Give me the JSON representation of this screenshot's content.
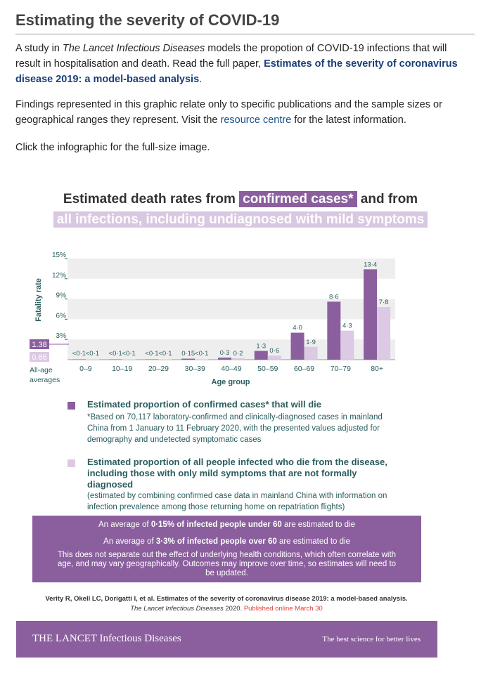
{
  "page": {
    "heading": "Estimating the severity of COVID-19",
    "intro": {
      "pre": "A study in ",
      "journal": "The Lancet Infectious Diseases",
      "mid": " models the propotion of COVID-19 infections that will result in hospitalisation and death. Read the full paper, ",
      "paper_link": "Estimates of the severity of coronavirus disease 2019: a model-based analysis",
      "post": "."
    },
    "findings": {
      "pre": "Findings represented in this graphic relate only to specific publications and the sample sizes or geographical ranges they represent. Visit the ",
      "link": "resource centre",
      "post": " for the latest information."
    },
    "click_note": "Click the infographic for the full-size image."
  },
  "infographic": {
    "title_line1_pre": "Estimated death rates from ",
    "title_line1_highlight": "confirmed cases*",
    "title_line1_post": " and from",
    "title_line2_highlight": "all infections, including undiagnosed with mild symptoms",
    "avg_confirmed": "1.38",
    "avg_infected": "0.66",
    "avg_caption_1": "All-age",
    "avg_caption_2": "averages",
    "legend": [
      {
        "head": "Estimated proportion of confirmed cases* that will die",
        "note": "*Based on 70,117 laboratory-confirmed and clinically-diagnosed cases in mainland China from 1 January to 11 February 2020, with the presented values adjusted for demography and undetected symptomatic cases"
      },
      {
        "head": "Estimated proportion of all people infected who die from the disease, including those with only mild symptoms that are not formally diagnosed",
        "note": "(estimated by combining confirmed case data in mainland China with information on infection prevalence among those returning home on repatriation flights)"
      }
    ],
    "avg_box": {
      "l1_pre": "An average of ",
      "l1_bold": "0·15% of infected people under 60",
      "l1_post": " are estimated to die",
      "l2_pre": "An average of ",
      "l2_bold": "3·3% of infected people over 60",
      "l2_post": " are estimated to die",
      "l3": "This does not separate out the effect of underlying health conditions, which  often correlate with age, and may vary geographically. Outcomes may improve over time, so estimates will need to be updated."
    },
    "citation": {
      "line1": "Verity R, Okell LC, Dorigatti I, et al. Estimates of the severity of coronavirus disease 2019: a model-based analysis.",
      "journal": "The Lancet Infectious Diseases",
      "year": " 2020. ",
      "published": "Published online March 30"
    },
    "footer": {
      "brand": "THE LANCET Infectious Diseases",
      "tagline": "The best science for better lives"
    },
    "colors": {
      "confirmed": "#8b5f9e",
      "infected": "#dcc9e3"
    }
  },
  "chart_data": {
    "type": "bar",
    "xlabel": "Age group",
    "ylabel": "Fatality rate",
    "ylim": [
      0,
      15
    ],
    "yticks": [
      "0",
      "3%",
      "6%",
      "9%",
      "12%",
      "15%"
    ],
    "ytick_values": [
      0,
      3,
      6,
      9,
      12,
      15
    ],
    "categories": [
      "0–9",
      "10–19",
      "20–29",
      "30–39",
      "40–49",
      "50–59",
      "60–69",
      "70–79",
      "80+"
    ],
    "series": [
      {
        "name": "Estimated proportion of confirmed cases* that will die",
        "values": [
          0.05,
          0.05,
          0.05,
          0.15,
          0.3,
          1.3,
          4.0,
          8.6,
          13.4
        ],
        "labels": [
          "<0·1",
          "<0·1",
          "<0·1",
          "0·15",
          "0·3",
          "1·3",
          "4·0",
          "8·6",
          "13·4"
        ]
      },
      {
        "name": "Estimated proportion of all people infected who die from the disease",
        "values": [
          0.05,
          0.05,
          0.05,
          0.05,
          0.2,
          0.6,
          1.9,
          4.3,
          7.8
        ],
        "labels": [
          "<0·1",
          "<0·1",
          "<0·1",
          "<0·1",
          "0·2",
          "0·6",
          "1·9",
          "4·3",
          "7·8"
        ]
      }
    ],
    "grid": "alternating bands",
    "legend_position": "below"
  }
}
